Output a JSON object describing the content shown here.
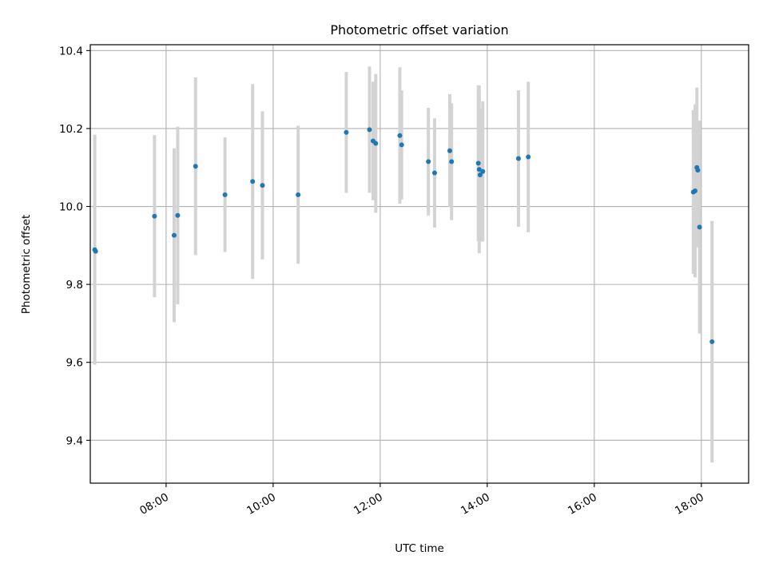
{
  "chart_data": {
    "type": "scatter",
    "title": "Photometric offset variation",
    "xlabel": "UTC time",
    "ylabel": "Photometric offset",
    "xlim": [
      "06:35",
      "18:53"
    ],
    "ylim": [
      9.29,
      10.415
    ],
    "x_ticks": [
      "08:00",
      "10:00",
      "12:00",
      "14:00",
      "16:00",
      "18:00"
    ],
    "y_ticks": [
      "9.4",
      "9.6",
      "9.8",
      "10.0",
      "10.2",
      "10.4"
    ],
    "grid": true,
    "colors": {
      "point": "#1f77b4",
      "errorbar": "#d3d3d3",
      "grid": "#b0b0b0"
    },
    "points": [
      {
        "x": "06:40",
        "y": 9.889,
        "yerr": 0.295
      },
      {
        "x": "06:41",
        "y": 9.885,
        "yerr": 0.0
      },
      {
        "x": "07:47",
        "y": 9.975,
        "yerr": 0.208
      },
      {
        "x": "08:09",
        "y": 9.926,
        "yerr": 0.223
      },
      {
        "x": "08:13",
        "y": 9.977,
        "yerr": 0.228
      },
      {
        "x": "08:33",
        "y": 10.103,
        "yerr": 0.228
      },
      {
        "x": "09:06",
        "y": 10.03,
        "yerr": 0.147
      },
      {
        "x": "09:37",
        "y": 10.064,
        "yerr": 0.25
      },
      {
        "x": "09:48",
        "y": 10.054,
        "yerr": 0.19
      },
      {
        "x": "10:28",
        "y": 10.03,
        "yerr": 0.177
      },
      {
        "x": "11:22",
        "y": 10.19,
        "yerr": 0.155
      },
      {
        "x": "11:48",
        "y": 10.197,
        "yerr": 0.162
      },
      {
        "x": "11:52",
        "y": 10.168,
        "yerr": 0.152
      },
      {
        "x": "11:55",
        "y": 10.162,
        "yerr": 0.178
      },
      {
        "x": "12:22",
        "y": 10.182,
        "yerr": 0.175
      },
      {
        "x": "12:24",
        "y": 10.158,
        "yerr": 0.14
      },
      {
        "x": "12:54",
        "y": 10.115,
        "yerr": 0.138
      },
      {
        "x": "13:01",
        "y": 10.086,
        "yerr": 0.14
      },
      {
        "x": "13:18",
        "y": 10.143,
        "yerr": 0.145
      },
      {
        "x": "13:20",
        "y": 10.115,
        "yerr": 0.15
      },
      {
        "x": "13:50",
        "y": 10.111,
        "yerr": 0.2
      },
      {
        "x": "13:51",
        "y": 10.095,
        "yerr": 0.215
      },
      {
        "x": "13:52",
        "y": 10.081,
        "yerr": 0.17
      },
      {
        "x": "13:55",
        "y": 10.09,
        "yerr": 0.18
      },
      {
        "x": "14:35",
        "y": 10.123,
        "yerr": 0.175
      },
      {
        "x": "14:46",
        "y": 10.127,
        "yerr": 0.193
      },
      {
        "x": "17:51",
        "y": 10.037,
        "yerr": 0.21
      },
      {
        "x": "17:53",
        "y": 10.04,
        "yerr": 0.222
      },
      {
        "x": "17:55",
        "y": 10.1,
        "yerr": 0.205
      },
      {
        "x": "17:56",
        "y": 10.093,
        "yerr": 0.125
      },
      {
        "x": "17:58",
        "y": 9.947,
        "yerr": 0.273
      },
      {
        "x": "18:12",
        "y": 9.653,
        "yerr": 0.31
      }
    ]
  }
}
